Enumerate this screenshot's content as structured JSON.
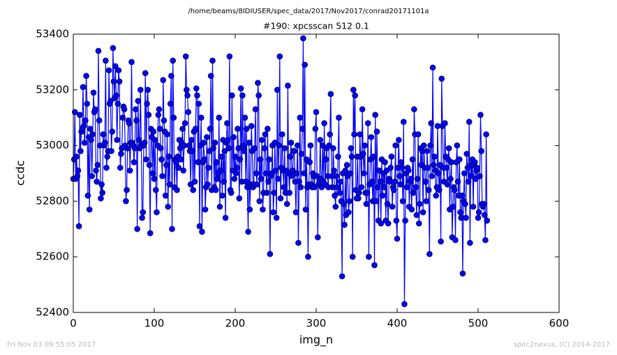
{
  "chart_data": {
    "type": "line",
    "title": "/home/beams/8IDIUSER/spec_data/2017/Nov2017/conrad20171101a",
    "subtitle": "#190: xpcsscan 512 0.1",
    "x_label": "img_n",
    "y_label": "ccdc",
    "footer_left": "Fri Nov 03 09:55:05 2017",
    "footer_right": "spec2nexus, (C) 2014-2017",
    "xlim": [
      0,
      600
    ],
    "xticks": [
      0,
      100,
      200,
      300,
      400,
      500,
      600
    ],
    "ylim": [
      52400,
      53400
    ],
    "yticks": [
      52400,
      52600,
      52800,
      53000,
      53200,
      53400
    ],
    "grid": false,
    "x": [
      0,
      1,
      2,
      3,
      4,
      5,
      6,
      7,
      8,
      9,
      10,
      11,
      12,
      13,
      14,
      15,
      16,
      17,
      18,
      19,
      20,
      21,
      22,
      23,
      24,
      25,
      26,
      27,
      28,
      29,
      30,
      31,
      32,
      33,
      34,
      35,
      36,
      37,
      38,
      39,
      40,
      41,
      42,
      43,
      44,
      45,
      46,
      47,
      48,
      49,
      50,
      51,
      52,
      53,
      54,
      55,
      56,
      57,
      58,
      59,
      60,
      61,
      62,
      63,
      64,
      65,
      66,
      67,
      68,
      69,
      70,
      71,
      72,
      73,
      74,
      75,
      76,
      77,
      78,
      79,
      80,
      81,
      82,
      83,
      84,
      85,
      86,
      87,
      88,
      89,
      90,
      91,
      92,
      93,
      94,
      95,
      96,
      97,
      98,
      99,
      100,
      101,
      102,
      103,
      104,
      105,
      106,
      107,
      108,
      109,
      110,
      111,
      112,
      113,
      114,
      115,
      116,
      117,
      118,
      119,
      120,
      121,
      122,
      123,
      124,
      125,
      126,
      127,
      128,
      129,
      130,
      131,
      132,
      133,
      134,
      135,
      136,
      137,
      138,
      139,
      140,
      141,
      142,
      143,
      144,
      145,
      146,
      147,
      148,
      149,
      150,
      151,
      152,
      153,
      154,
      155,
      156,
      157,
      158,
      159,
      160,
      161,
      162,
      163,
      164,
      165,
      166,
      167,
      168,
      169,
      170,
      171,
      172,
      173,
      174,
      175,
      176,
      177,
      178,
      179,
      180,
      181,
      182,
      183,
      184,
      185,
      186,
      187,
      188,
      189,
      190,
      191,
      192,
      193,
      194,
      195,
      196,
      197,
      198,
      199,
      200,
      201,
      202,
      203,
      204,
      205,
      206,
      207,
      208,
      209,
      210,
      211,
      212,
      213,
      214,
      215,
      216,
      217,
      218,
      219,
      220,
      221,
      222,
      223,
      224,
      225,
      226,
      227,
      228,
      229,
      230,
      231,
      232,
      233,
      234,
      235,
      236,
      237,
      238,
      239,
      240,
      241,
      242,
      243,
      244,
      245,
      246,
      247,
      248,
      249,
      250,
      251,
      252,
      253,
      254,
      255,
      256,
      257,
      258,
      259,
      260,
      261,
      262,
      263,
      264,
      265,
      266,
      267,
      268,
      269,
      270,
      271,
      272,
      273,
      274,
      275,
      276,
      277,
      278,
      279,
      280,
      281,
      282,
      283,
      284,
      285,
      286,
      287,
      288,
      289,
      290,
      291,
      292,
      293,
      294,
      295,
      296,
      297,
      298,
      299,
      300,
      301,
      302,
      303,
      304,
      305,
      306,
      307,
      308,
      309,
      310,
      311,
      312,
      313,
      314,
      315,
      316,
      317,
      318,
      319,
      320,
      321,
      322,
      323,
      324,
      325,
      326,
      327,
      328,
      329,
      330,
      331,
      332,
      333,
      334,
      335,
      336,
      337,
      338,
      339,
      340,
      341,
      342,
      343,
      344,
      345,
      346,
      347,
      348,
      349,
      350,
      351,
      352,
      353,
      354,
      355,
      356,
      357,
      358,
      359,
      360,
      361,
      362,
      363,
      364,
      365,
      366,
      367,
      368,
      369,
      370,
      371,
      372,
      373,
      374,
      375,
      376,
      377,
      378,
      379,
      380,
      381,
      382,
      383,
      384,
      385,
      386,
      387,
      388,
      389,
      390,
      391,
      392,
      393,
      394,
      395,
      396,
      397,
      398,
      399,
      400,
      401,
      402,
      403,
      404,
      405,
      406,
      407,
      408,
      409,
      410,
      411,
      412,
      413,
      414,
      415,
      416,
      417,
      418,
      419,
      420,
      421,
      422,
      423,
      424,
      425,
      426,
      427,
      428,
      429,
      430,
      431,
      432,
      433,
      434,
      435,
      436,
      437,
      438,
      439,
      440,
      441,
      442,
      443,
      444,
      445,
      446,
      447,
      448,
      449,
      450,
      451,
      452,
      453,
      454,
      455,
      456,
      457,
      458,
      459,
      460,
      461,
      462,
      463,
      464,
      465,
      466,
      467,
      468,
      469,
      470,
      471,
      472,
      473,
      474,
      475,
      476,
      477,
      478,
      479,
      480,
      481,
      482,
      483,
      484,
      485,
      486,
      487,
      488,
      489,
      490,
      491,
      492,
      493,
      494,
      495,
      496,
      497,
      498,
      499,
      500,
      501,
      502,
      503,
      504,
      505,
      506,
      507,
      508,
      509,
      510,
      511
    ],
    "series": [
      {
        "color": "#0000ff",
        "values": [
          52880,
          52950,
          53120,
          52880,
          52960,
          52890,
          52910,
          52710,
          53110,
          52980,
          53050,
          53060,
          53210,
          53070,
          53010,
          53090,
          53250,
          53150,
          52820,
          53030,
          52770,
          53060,
          53020,
          52890,
          53040,
          53190,
          53120,
          53130,
          52910,
          52870,
          52930,
          53340,
          53090,
          53000,
          52810,
          52860,
          52830,
          53040,
          53000,
          53010,
          53305,
          52920,
          52960,
          52980,
          53270,
          53150,
          53160,
          52980,
          53050,
          53350,
          53230,
          53170,
          53285,
          53180,
          53020,
          53150,
          53270,
          53230,
          52920,
          52970,
          52990,
          53100,
          53140,
          53130,
          53000,
          52800,
          52840,
          52990,
          53090,
          53080,
          52910,
          53010,
          53300,
          53010,
          53000,
          52940,
          52990,
          53130,
          53090,
          52700,
          53160,
          53020,
          52990,
          53200,
          53000,
          52740,
          52760,
          53000,
          53010,
          53260,
          52950,
          53150,
          53200,
          53110,
          52930,
          52685,
          53060,
          53030,
          52900,
          53050,
          52880,
          53020,
          52840,
          52760,
          53000,
          53110,
          53130,
          53060,
          52990,
          52950,
          52890,
          53235,
          53090,
          53050,
          52820,
          52930,
          53040,
          52780,
          52960,
          52860,
          53150,
          53250,
          52700,
          53305,
          53100,
          52850,
          52950,
          52940,
          52840,
          52960,
          52920,
          53020,
          52990,
          52950,
          53010,
          53060,
          52910,
          53000,
          53080,
          53320,
          53200,
          53180,
          53120,
          53000,
          52980,
          52860,
          53020,
          52980,
          52840,
          53050,
          52870,
          53060,
          53205,
          53180,
          52940,
          53150,
          52710,
          53000,
          53100,
          52690,
          52940,
          53010,
          52950,
          52770,
          52850,
          53030,
          52860,
          52920,
          52980,
          53060,
          53250,
          52840,
          53305,
          52990,
          52850,
          53010,
          52840,
          52940,
          52880,
          52900,
          53100,
          52780,
          52910,
          52960,
          52820,
          53020,
          52870,
          52980,
          52740,
          53010,
          53080,
          53020,
          52990,
          53320,
          52840,
          52830,
          53180,
          52910,
          53030,
          52880,
          52960,
          52900,
          52920,
          53060,
          52990,
          52810,
          52950,
          53205,
          52870,
          53180,
          53000,
          52980,
          53100,
          52870,
          53060,
          52850,
          52690,
          53010,
          52770,
          52860,
          53070,
          52980,
          52850,
          52860,
          52990,
          53130,
          52900,
          52860,
          53225,
          53180,
          52800,
          52950,
          52880,
          53020,
          52770,
          52830,
          52990,
          53040,
          52900,
          52830,
          53060,
          52870,
          52950,
          52610,
          52890,
          52900,
          53000,
          52760,
          52830,
          53010,
          52910,
          52740,
          53200,
          52880,
          53000,
          53320,
          52810,
          52920,
          53040,
          52910,
          52850,
          52990,
          52830,
          52910,
          52790,
          53215,
          52900,
          52830,
          52960,
          53010,
          52890,
          52910,
          52980,
          52980,
          52870,
          52760,
          52900,
          53000,
          52650,
          52870,
          53100,
          52850,
          52970,
          53060,
          53385,
          52900,
          53290,
          52770,
          52950,
          52850,
          52600,
          52860,
          52940,
          53000,
          52860,
          52850,
          52900,
          52890,
          52850,
          53060,
          53120,
          52890,
          52670,
          52860,
          52870,
          53020,
          52880,
          52850,
          53000,
          52870,
          53080,
          52860,
          52950,
          52990,
          52890,
          52850,
          53000,
          53040,
          53185,
          52890,
          52850,
          52990,
          52910,
          52820,
          52780,
          52890,
          52850,
          52960,
          53100,
          52830,
          52870,
          52800,
          52530,
          52900,
          52790,
          52715,
          52910,
          52750,
          52930,
          52890,
          52760,
          52800,
          52900,
          52990,
          52960,
          52600,
          53200,
          53040,
          53180,
          52840,
          52810,
          52960,
          52810,
          52830,
          53040,
          52960,
          52850,
          53130,
          52970,
          52900,
          53000,
          52830,
          52790,
          52830,
          53080,
          52600,
          52860,
          52950,
          53030,
          52870,
          52800,
          52960,
          52570,
          53110,
          52800,
          53050,
          52850,
          52730,
          52910,
          52870,
          52720,
          52950,
          52820,
          52900,
          52850,
          52940,
          52730,
          52910,
          52790,
          52720,
          52880,
          52870,
          52920,
          52960,
          52780,
          52850,
          52840,
          52870,
          53000,
          52730,
          52665,
          52920,
          53020,
          52890,
          52860,
          52940,
          52920,
          52800,
          53085,
          52430,
          52730,
          52900,
          52850,
          52920,
          52910,
          52780,
          52870,
          52880,
          52770,
          52950,
          52830,
          53130,
          53040,
          52850,
          52750,
          52880,
          53040,
          52720,
          52790,
          52990,
          52930,
          52980,
          52760,
          53000,
          52920,
          52870,
          52800,
          52980,
          52920,
          52840,
          52610,
          53000,
          53080,
          52890,
          53280,
          52930,
          52960,
          52910,
          52820,
          52850,
          53070,
          52900,
          52840,
          52930,
          52655,
          53240,
          53070,
          52920,
          52870,
          53080,
          52960,
          52920,
          52860,
          52950,
          52990,
          52770,
          52880,
          52940,
          52670,
          52780,
          52850,
          52840,
          52660,
          52940,
          53000,
          52870,
          52820,
          52950,
          52760,
          52740,
          52820,
          52540,
          52800,
          52900,
          52790,
          52740,
          52970,
          52920,
          52870,
          53085,
          52650,
          52930,
          52890,
          52950,
          52780,
          52930,
          52940,
          52880,
          52910,
          52920,
          52740,
          52760,
          52890,
          53110,
          52980,
          52790,
          52780,
          52790,
          52750,
          52660,
          53040,
          52730
        ]
      }
    ]
  }
}
